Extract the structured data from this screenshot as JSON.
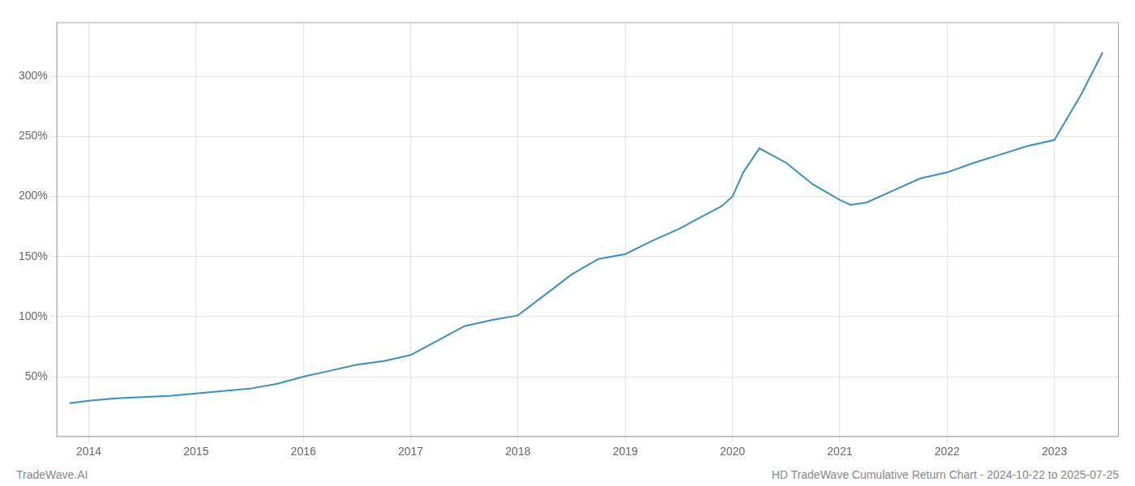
{
  "chart_data": {
    "type": "line",
    "x": [
      2013.82,
      2014.0,
      2014.25,
      2014.5,
      2014.75,
      2015.0,
      2015.25,
      2015.5,
      2015.75,
      2016.0,
      2016.25,
      2016.5,
      2016.75,
      2017.0,
      2017.25,
      2017.5,
      2017.75,
      2018.0,
      2018.25,
      2018.5,
      2018.75,
      2019.0,
      2019.25,
      2019.5,
      2019.75,
      2019.9,
      2020.0,
      2020.1,
      2020.25,
      2020.5,
      2020.75,
      2021.0,
      2021.1,
      2021.25,
      2021.5,
      2021.75,
      2022.0,
      2022.25,
      2022.5,
      2022.75,
      2023.0,
      2023.25,
      2023.45
    ],
    "values": [
      28,
      30,
      32,
      33,
      34,
      36,
      38,
      40,
      44,
      50,
      55,
      60,
      63,
      68,
      80,
      92,
      97,
      101,
      118,
      135,
      148,
      152,
      163,
      173,
      185,
      192,
      200,
      220,
      240,
      228,
      210,
      197,
      193,
      195,
      205,
      215,
      220,
      228,
      235,
      242,
      247,
      285,
      320
    ],
    "color": "#3a8ec0",
    "xlim": [
      2013.7,
      2023.6
    ],
    "xticks": [
      2014,
      2015,
      2016,
      2017,
      2018,
      2019,
      2020,
      2021,
      2022,
      2023
    ],
    "ylim": [
      0,
      345
    ],
    "yticks": [
      {
        "value": 50,
        "label": "50%"
      },
      {
        "value": 100,
        "label": "100%"
      },
      {
        "value": 150,
        "label": "150%"
      },
      {
        "value": 200,
        "label": "200%"
      },
      {
        "value": 250,
        "label": "250%"
      },
      {
        "value": 300,
        "label": "300%"
      }
    ],
    "grid": true,
    "annotations": [
      "TradeWave.AI",
      "HD TradeWave Cumulative Return Chart - 2024-10-22 to 2025-07-25"
    ]
  }
}
